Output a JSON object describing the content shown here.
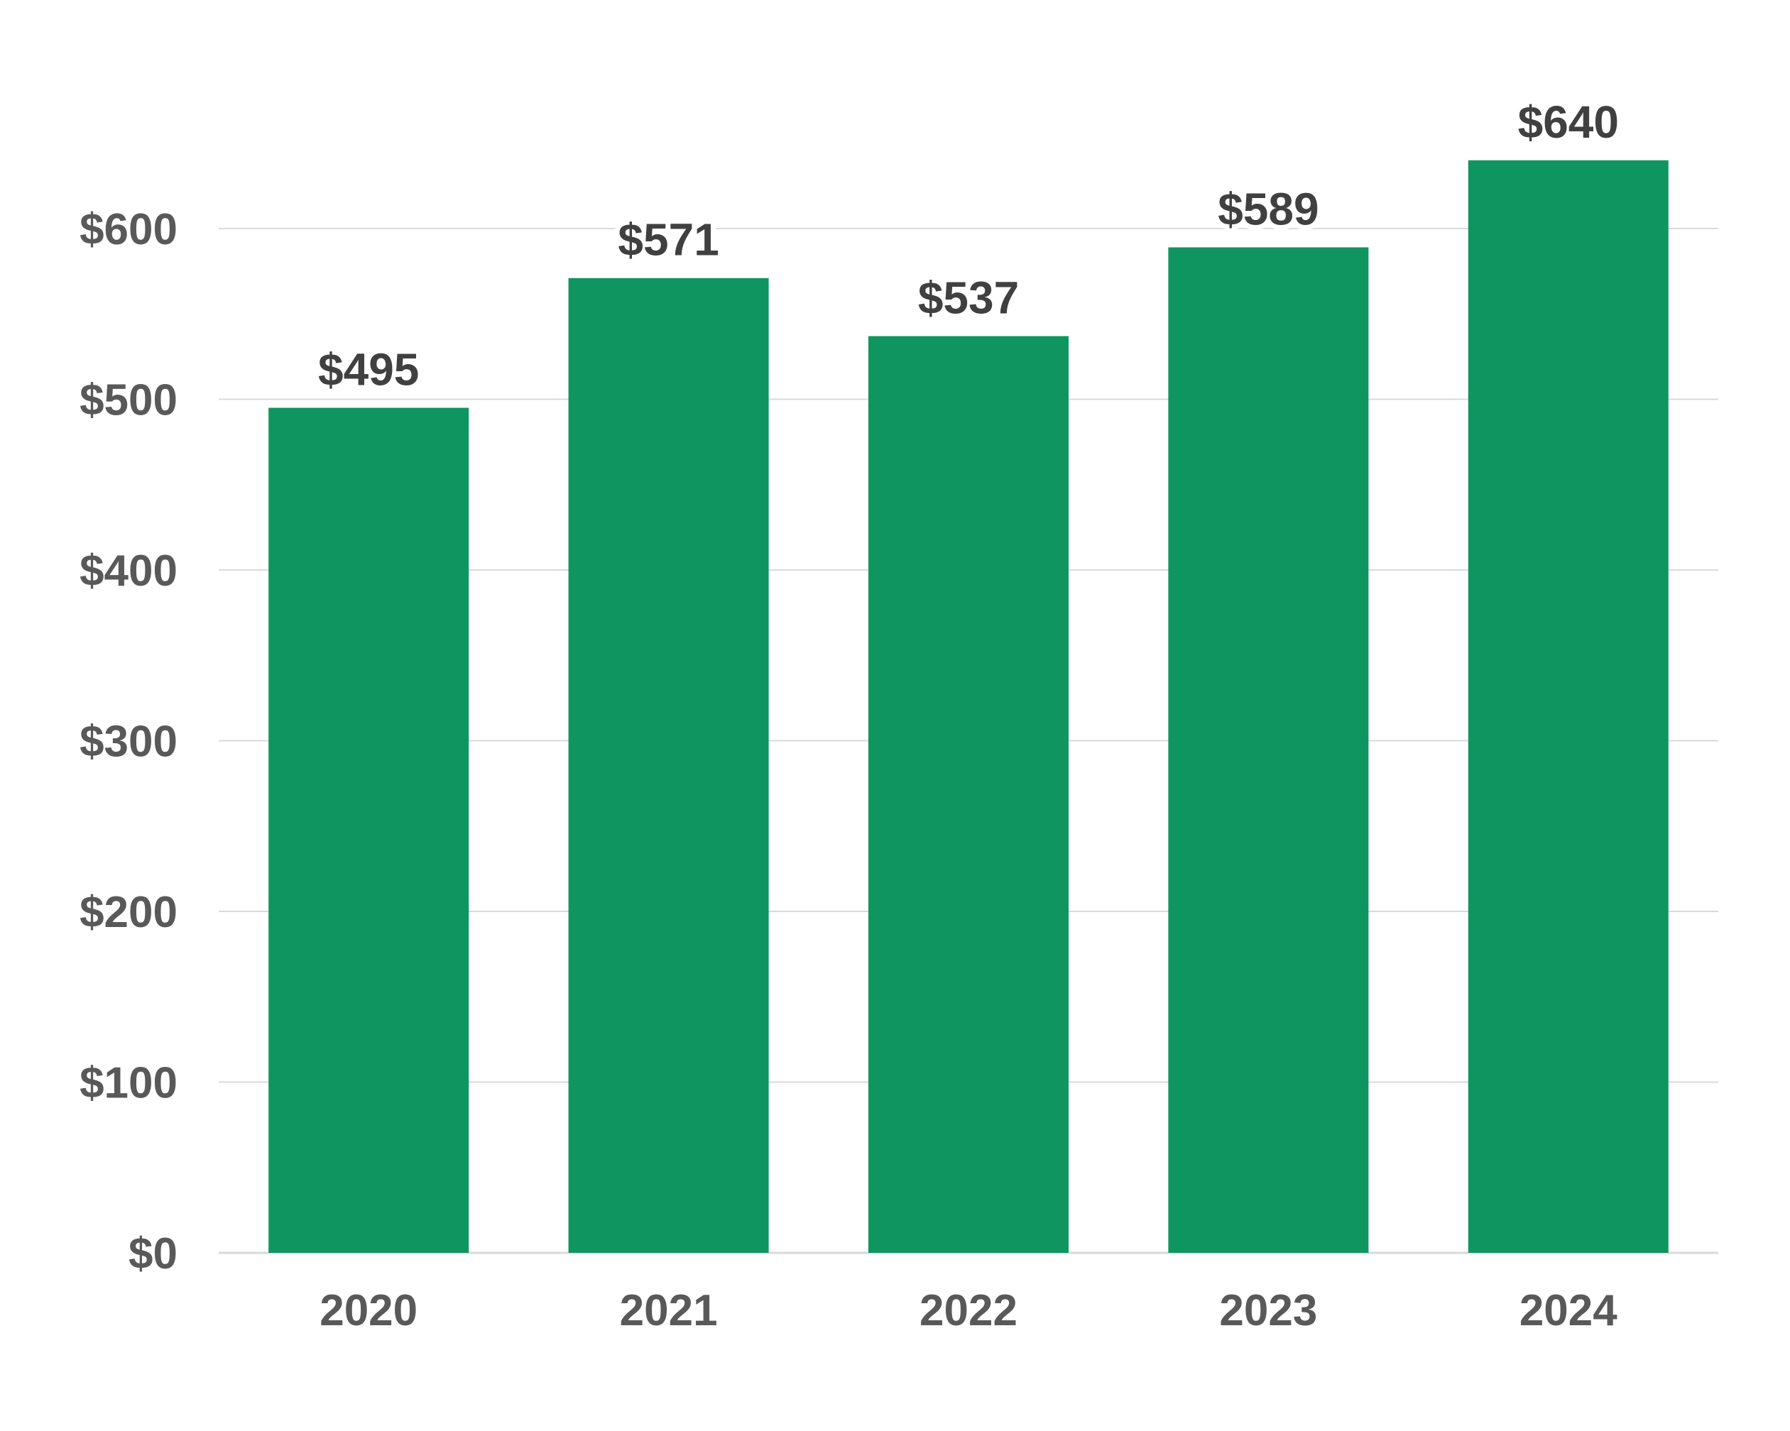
{
  "chart_data": {
    "type": "bar",
    "categories": [
      "2020",
      "2021",
      "2022",
      "2023",
      "2024"
    ],
    "values": [
      495,
      571,
      537,
      589,
      640
    ],
    "value_labels": [
      "$495",
      "$571",
      "$537",
      "$589",
      "$640"
    ],
    "title": "",
    "xlabel": "",
    "ylabel": "",
    "ylim": [
      0,
      700
    ],
    "y_ticks": [
      0,
      100,
      200,
      300,
      400,
      500,
      600
    ],
    "y_tick_labels": [
      "$0",
      "$100",
      "$200",
      "$300",
      "$400",
      "$500",
      "$600"
    ],
    "grid": true,
    "legend": "none",
    "colors": {
      "bar": "#0f9660",
      "grid": "#d9d9d9",
      "axis_text": "#595959",
      "value_text": "#404040",
      "background": "#ffffff"
    }
  }
}
